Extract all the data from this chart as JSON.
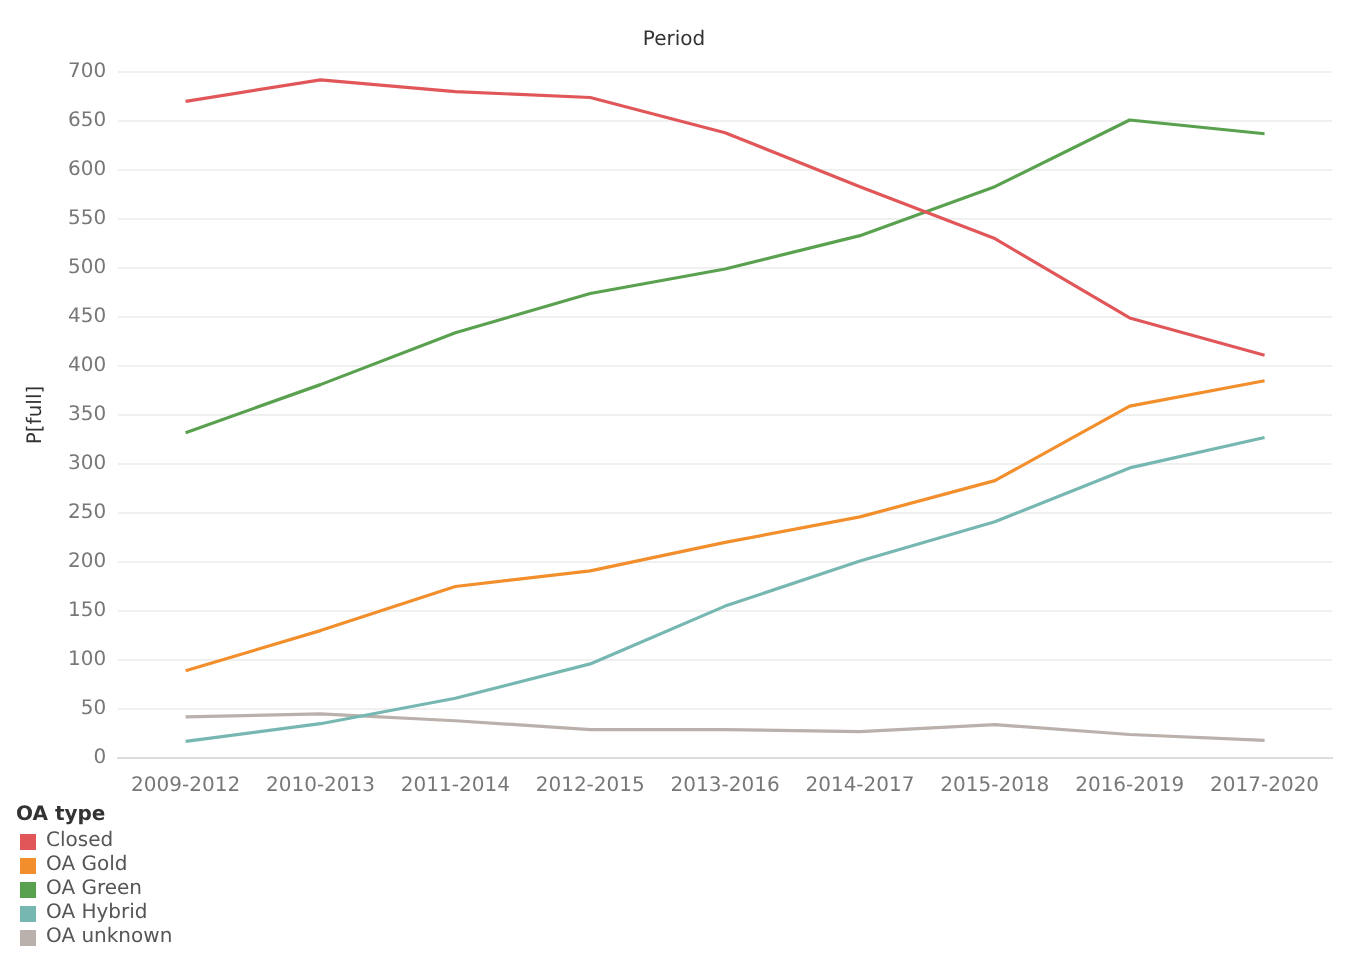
{
  "chart_data": {
    "type": "line",
    "title": "Period",
    "ylabel": "P[full]",
    "legend_title": "OA type",
    "categories": [
      "2009-2012",
      "2010-2013",
      "2011-2014",
      "2012-2015",
      "2013-2016",
      "2014-2017",
      "2015-2018",
      "2016-2019",
      "2017-2020"
    ],
    "series": [
      {
        "name": "Closed",
        "color": "#e15759",
        "values": [
          670,
          692,
          680,
          674,
          638,
          583,
          530,
          449,
          411
        ]
      },
      {
        "name": "OA Gold",
        "color": "#f28e2b",
        "values": [
          89,
          130,
          175,
          191,
          220,
          246,
          283,
          359,
          385
        ]
      },
      {
        "name": "OA Green",
        "color": "#59a14f",
        "values": [
          332,
          381,
          434,
          474,
          499,
          533,
          583,
          651,
          637
        ]
      },
      {
        "name": "OA Hybrid",
        "color": "#76b7b2",
        "values": [
          17,
          35,
          61,
          96,
          155,
          201,
          241,
          296,
          327
        ]
      },
      {
        "name": "OA unknown",
        "color": "#bab0ac",
        "values": [
          42,
          45,
          38,
          29,
          29,
          27,
          34,
          24,
          18
        ]
      }
    ],
    "ylim": [
      0,
      700
    ],
    "yticks": [
      0,
      50,
      100,
      150,
      200,
      250,
      300,
      350,
      400,
      450,
      500,
      550,
      600,
      650,
      700
    ],
    "grid": "y",
    "legend": "bottom left",
    "marker": "none",
    "line_style": "solid"
  }
}
